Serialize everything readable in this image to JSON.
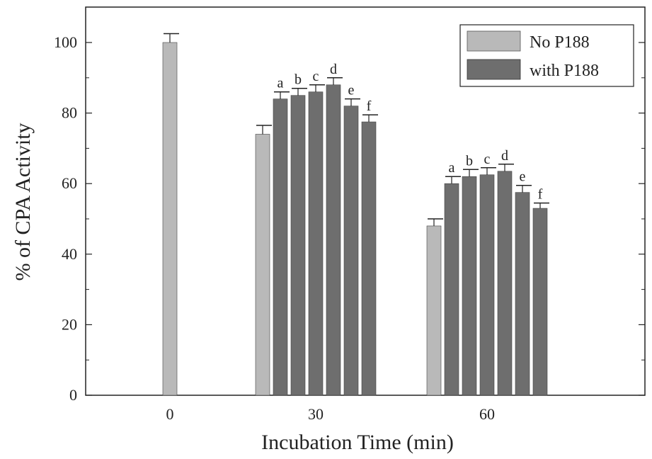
{
  "chart_data": {
    "type": "bar",
    "xlabel": "Incubation Time (min)",
    "ylabel": "% of CPA Activity",
    "ylim": [
      0,
      100
    ],
    "y_ticks": [
      0,
      20,
      40,
      60,
      80,
      100
    ],
    "grid": false,
    "legend_position": "top-right",
    "legend": [
      {
        "name": "No P188",
        "color": "#b9b9b9"
      },
      {
        "name": "with P188",
        "color": "#6e6e6e"
      }
    ],
    "groups": [
      {
        "time": "0",
        "bars": [
          {
            "series": "No P188",
            "value": 100,
            "error": 2.5,
            "label": ""
          }
        ]
      },
      {
        "time": "30",
        "bars": [
          {
            "series": "No P188",
            "value": 74,
            "error": 2.5,
            "label": ""
          },
          {
            "series": "with P188",
            "value": 84,
            "error": 2.0,
            "label": "a"
          },
          {
            "series": "with P188",
            "value": 85,
            "error": 2.0,
            "label": "b"
          },
          {
            "series": "with P188",
            "value": 86,
            "error": 2.0,
            "label": "c"
          },
          {
            "series": "with P188",
            "value": 88,
            "error": 2.0,
            "label": "d"
          },
          {
            "series": "with P188",
            "value": 82,
            "error": 2.0,
            "label": "e"
          },
          {
            "series": "with P188",
            "value": 77.5,
            "error": 2.0,
            "label": "f"
          }
        ]
      },
      {
        "time": "60",
        "bars": [
          {
            "series": "No P188",
            "value": 48,
            "error": 2.0,
            "label": ""
          },
          {
            "series": "with P188",
            "value": 60,
            "error": 2.0,
            "label": "a"
          },
          {
            "series": "with P188",
            "value": 62,
            "error": 2.0,
            "label": "b"
          },
          {
            "series": "with P188",
            "value": 62.5,
            "error": 2.0,
            "label": "c"
          },
          {
            "series": "with P188",
            "value": 63.5,
            "error": 2.0,
            "label": "d"
          },
          {
            "series": "with P188",
            "value": 57.5,
            "error": 2.0,
            "label": "e"
          },
          {
            "series": "with P188",
            "value": 53,
            "error": 1.5,
            "label": "f"
          }
        ]
      }
    ]
  }
}
